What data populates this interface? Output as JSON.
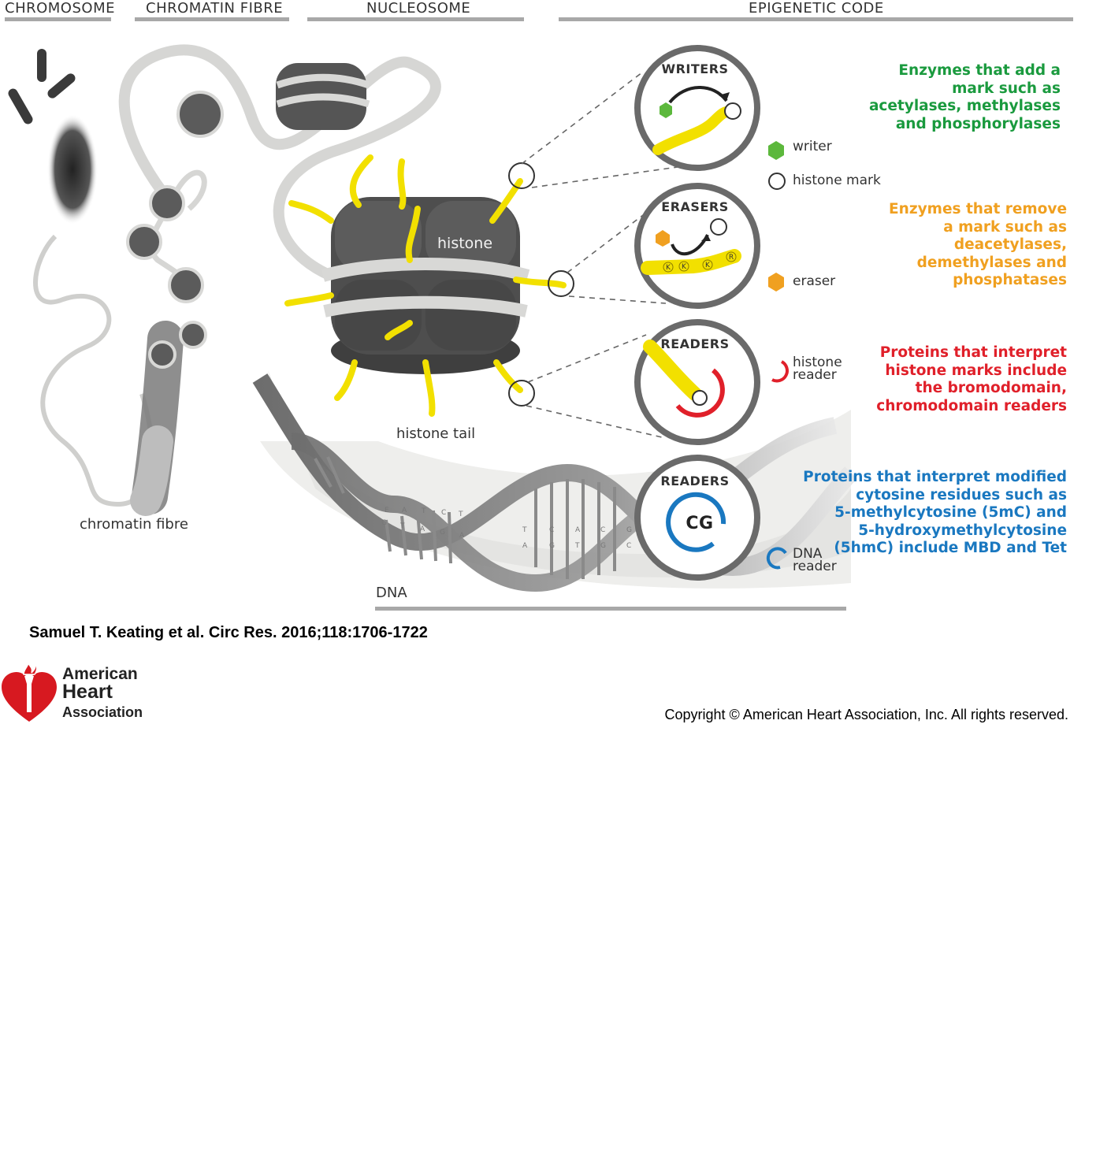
{
  "headers": {
    "chromosome": "CHROMOSOME",
    "chromatin_fibre": "CHROMATIN FIBRE",
    "nucleosome": "NUCLEOSOME",
    "epigenetic_code": "EPIGENETIC CODE"
  },
  "labels": {
    "histone": "histone",
    "histone_tail": "histone tail",
    "chromatin_fibre": "chromatin fibre",
    "dna": "DNA"
  },
  "panels": {
    "writers": "WRITERS",
    "erasers": "ERASERS",
    "readers_histone": "READERS",
    "readers_dna": "READERS",
    "cg": "CG",
    "residues": [
      "K",
      "K",
      "K",
      "R"
    ]
  },
  "dna_bases": {
    "top_left": [
      "E",
      "A",
      "T",
      "C",
      "T"
    ],
    "bottom_left": [
      "G",
      "T",
      "A",
      "G",
      "A"
    ],
    "top_right": [
      "T",
      "C",
      "A",
      "C",
      "G"
    ],
    "bottom_right": [
      "A",
      "G",
      "T",
      "G",
      "C"
    ]
  },
  "legend": {
    "writer": "writer",
    "histone_mark": "histone mark",
    "eraser": "eraser",
    "histone_reader": "histone\nreader",
    "dna_reader": "DNA\nreader"
  },
  "descriptions": {
    "writers": "Enzymes that add a\nmark such as\nacetylases, methylases\nand phosphorylases",
    "erasers": "Enzymes that remove\na mark such as\ndeacetylases,\ndemethylases and\nphosphatases",
    "histone_readers": "Proteins that interpret\nhistone marks include\nthe bromodomain,\nchromodomain readers",
    "dna_readers": "Proteins that interpret modified\ncytosine residues such as\n5-methylcytosine (5mC) and\n5-hydroxymethylcytosine\n(5hmC) include MBD and Tet"
  },
  "colors": {
    "writer_green": "#1a9a3e",
    "eraser_orange": "#f0a020",
    "histone_reader_red": "#e0202a",
    "dna_reader_blue": "#1a78c0",
    "histone_gray": "#555555",
    "tail_yellow": "#f2e000",
    "aha_red": "#d71920"
  },
  "citation": "Samuel T. Keating et al. Circ Res. 2016;118:1706-1722",
  "copyright": "Copyright © American Heart Association, Inc. All rights reserved.",
  "logo": {
    "line1": "American",
    "line2": "Heart",
    "line3": "Association"
  }
}
